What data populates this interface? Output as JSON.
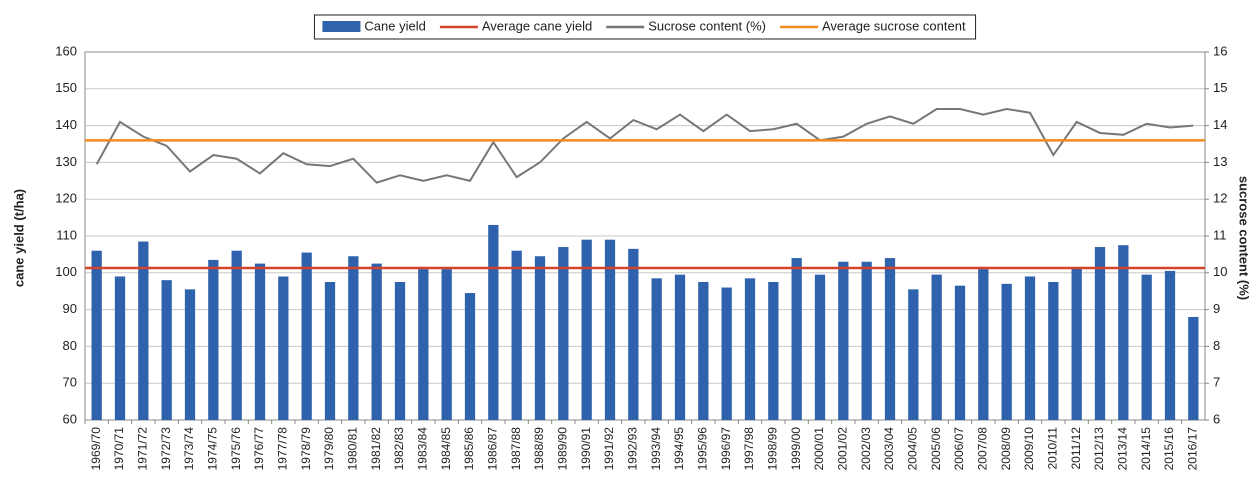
{
  "chart_data": {
    "type": "combo",
    "y_label": "cane yield (t/ha)",
    "y2_label": "sucrose content (%)",
    "categories": [
      "1969/70",
      "1970/71",
      "1971/72",
      "1972/73",
      "1973/74",
      "1974/75",
      "1975/76",
      "1976/77",
      "1977/78",
      "1978/79",
      "1979/80",
      "1980/81",
      "1981/82",
      "1982/83",
      "1983/84",
      "1984/85",
      "1985/86",
      "1986/87",
      "1987/88",
      "1988/89",
      "1989/90",
      "1990/91",
      "1991/92",
      "1992/93",
      "1993/94",
      "1994/95",
      "1995/96",
      "1996/97",
      "1997/98",
      "1998/99",
      "1999/00",
      "2000/01",
      "2001/02",
      "2002/03",
      "2003/04",
      "2004/05",
      "2005/06",
      "2006/07",
      "2007/08",
      "2008/09",
      "2009/10",
      "2010/11",
      "2011/12",
      "2012/13",
      "2013/14",
      "2014/15",
      "2015/16",
      "2016/17"
    ],
    "series": [
      {
        "name": "Cane yield",
        "type": "bar",
        "color": "#2f62ac",
        "values": [
          106,
          99,
          108.5,
          98,
          95.5,
          103.5,
          106,
          102.5,
          99,
          105.5,
          97.5,
          104.5,
          102.5,
          97.5,
          101,
          101,
          94.5,
          113,
          106,
          104.5,
          107,
          109,
          109,
          106.5,
          98.5,
          99.5,
          97.5,
          96,
          98.5,
          97.5,
          104,
          99.5,
          103,
          103,
          104,
          95.5,
          99.5,
          96.5,
          101,
          97,
          99,
          97.5,
          101.5,
          107,
          107.5,
          99.5,
          100.5,
          88
        ]
      },
      {
        "name": "Average cane yield",
        "type": "hline",
        "color": "#d4442a",
        "value": 101.3
      },
      {
        "name": "Sucrose content (%)",
        "type": "line",
        "color": "#777777",
        "axis": "y2",
        "values": [
          12.95,
          14.1,
          13.7,
          13.45,
          12.75,
          13.2,
          13.1,
          12.7,
          13.25,
          12.95,
          12.9,
          13.1,
          12.45,
          12.65,
          12.5,
          12.65,
          12.5,
          13.55,
          12.6,
          13.0,
          13.65,
          14.1,
          13.65,
          14.15,
          13.9,
          14.3,
          13.85,
          14.3,
          13.85,
          13.9,
          14.05,
          13.6,
          13.7,
          14.05,
          14.25,
          14.05,
          14.45,
          14.45,
          14.3,
          14.45,
          14.35,
          13.2,
          14.1,
          13.8,
          13.75,
          14.05,
          13.95,
          14.0
        ]
      },
      {
        "name": "Average sucrose content",
        "type": "hline",
        "color": "#f28a1e",
        "axis": "y2",
        "value": 13.6
      }
    ],
    "ylim": [
      60,
      160
    ],
    "yticks": [
      60,
      70,
      80,
      90,
      100,
      110,
      120,
      130,
      140,
      150,
      160
    ],
    "y2lim": [
      6,
      16
    ],
    "y2ticks": [
      6,
      7,
      8,
      9,
      10,
      11,
      12,
      13,
      14,
      15,
      16
    ],
    "grid": true
  }
}
